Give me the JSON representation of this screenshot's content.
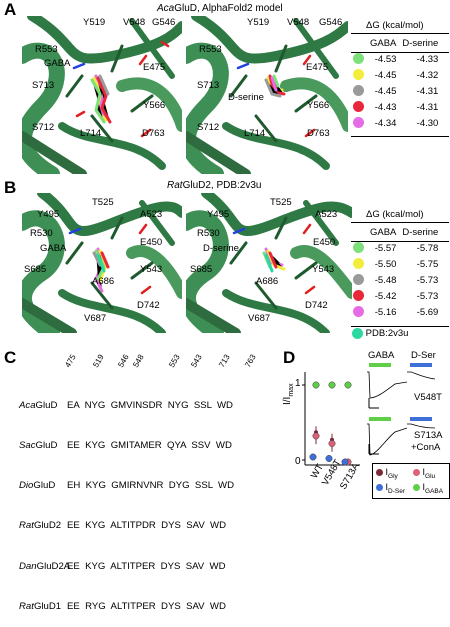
{
  "panelA": {
    "letter": "A",
    "title_species": "Aca",
    "title_rest": "GluD, AlphaFold2 model",
    "left_labels": [
      "Y519",
      "V548",
      "G546",
      "R553",
      "GABA",
      "E475",
      "S713",
      "Y566",
      "S712",
      "L714",
      "D763"
    ],
    "right_labels": [
      "Y519",
      "V548",
      "G546",
      "R553",
      "E475",
      "S713",
      "D-serine",
      "Y566",
      "S712",
      "L714",
      "D763"
    ],
    "dg_header": "ΔG (kcal/mol)",
    "col_gaba": "GABA",
    "col_dser": "D-serine",
    "rows": [
      {
        "color": "#7ee07a",
        "gaba": "-4.53",
        "dser": "-4.33"
      },
      {
        "color": "#f4ec3a",
        "gaba": "-4.45",
        "dser": "-4.32"
      },
      {
        "color": "#9a9a9a",
        "gaba": "-4.45",
        "dser": "-4.31"
      },
      {
        "color": "#e8283a",
        "gaba": "-4.43",
        "dser": "-4.31"
      },
      {
        "color": "#e66ce6",
        "gaba": "-4.34",
        "dser": "-4.30"
      }
    ]
  },
  "panelB": {
    "letter": "B",
    "title_species": "Rat",
    "title_rest": "GluD2, PDB:2v3u",
    "left_labels": [
      "T525",
      "Y495",
      "A523",
      "R530",
      "GABA",
      "E450",
      "S685",
      "Y543",
      "A686",
      "D742",
      "V687"
    ],
    "right_labels": [
      "T525",
      "Y495",
      "A523",
      "R530",
      "D-serine",
      "E450",
      "S685",
      "Y543",
      "A686",
      "D742",
      "V687"
    ],
    "dg_header": "ΔG (kcal/mol)",
    "col_gaba": "GABA",
    "col_dser": "D-serine",
    "rows": [
      {
        "color": "#7ee07a",
        "gaba": "-5.57",
        "dser": "-5.78"
      },
      {
        "color": "#f4ec3a",
        "gaba": "-5.50",
        "dser": "-5.75"
      },
      {
        "color": "#9a9a9a",
        "gaba": "-5.48",
        "dser": "-5.73"
      },
      {
        "color": "#e8283a",
        "gaba": "-5.42",
        "dser": "-5.73"
      },
      {
        "color": "#e66ce6",
        "gaba": "-5.16",
        "dser": "-5.69"
      }
    ],
    "pdb_label": "PDB:2v3u",
    "pdb_color": "#2bd9a0"
  },
  "panelC": {
    "letter": "C",
    "positions": [
      "475",
      "519",
      "546",
      "548",
      "553",
      "543",
      "713",
      "763"
    ],
    "rows": [
      {
        "species": "Aca",
        "gene": "GluD",
        "seq": "EA  NYG  GMVINSDR  NYG  SSL  WD"
      },
      {
        "species": "Sac",
        "gene": "GluD",
        "seq": "EE  KYG  GMITAMER  QYA  SSV  WD"
      },
      {
        "species": "Dio",
        "gene": "GluD",
        "seq": "EH  KYG  GMIRNVNR  DYG  SSL  WD"
      },
      {
        "species": "Rat",
        "gene": "GluD2",
        "seq": "EE  KYG  ALTITPDR  DYS  SAV  WD"
      },
      {
        "species": "Dan",
        "gene": "GluD2A",
        "seq": "EE  KYG  ALTITPER  DYS  SAV  WD"
      },
      {
        "species": "Rat",
        "gene": "GluD1",
        "seq": "EE  RYG  ALTITPER  DYS  SAV  WD"
      }
    ]
  },
  "panelD": {
    "letter": "D",
    "ylabel_main": "I/I",
    "ylabel_sub": "max",
    "yticks": [
      "1",
      "0"
    ],
    "categories": [
      "WT",
      "V548T",
      "S713A"
    ],
    "trace_labels": {
      "gaba": "GABA",
      "dser": "D-Ser",
      "v548t": "V548T",
      "s713a_line1": "S713A",
      "s713a_line2": "+ConA"
    },
    "legend": [
      {
        "label_main": "I",
        "label_sub": "Gly",
        "color": "#7b2a3a"
      },
      {
        "label_main": "I",
        "label_sub": "Glu",
        "color": "#e0607a"
      },
      {
        "label_main": "I",
        "label_sub": "D-Ser",
        "color": "#3f6fd8"
      },
      {
        "label_main": "I",
        "label_sub": "GABA",
        "color": "#5fcf4a"
      }
    ],
    "chart_data": {
      "type": "scatter",
      "categories": [
        "WT",
        "V548T",
        "S713A"
      ],
      "ylim": [
        0,
        1.1
      ],
      "series": [
        {
          "name": "IGly",
          "values": [
            0.37,
            0.27,
            0.0
          ]
        },
        {
          "name": "IGlu",
          "values": [
            0.4,
            0.3,
            0.0
          ]
        },
        {
          "name": "ID-Ser",
          "values": [
            0.04,
            0.02,
            0.0
          ]
        },
        {
          "name": "IGABA",
          "values": [
            1.0,
            1.0,
            1.0
          ]
        }
      ]
    }
  }
}
